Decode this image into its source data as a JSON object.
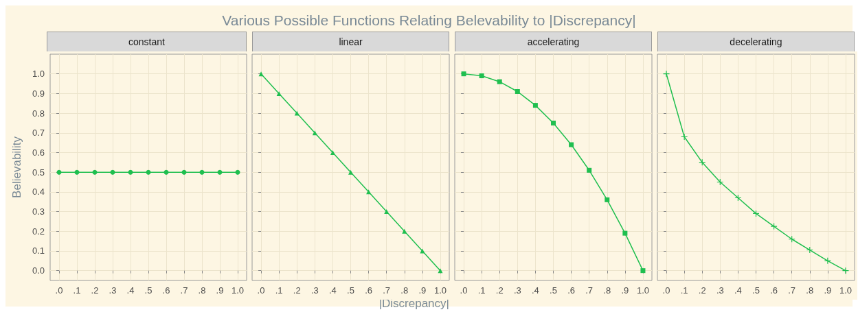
{
  "chart_data": [
    {
      "type": "line",
      "title": "constant",
      "annotations": [
        "Various Possible Functions Relating Belevability to |Discrepancy|"
      ],
      "ylabel": "Believability",
      "marker": "circle",
      "grid": true,
      "x": [
        0,
        0.1,
        0.2,
        0.3,
        0.4,
        0.5,
        0.6,
        0.7,
        0.8,
        0.9,
        1.0
      ],
      "series": [
        {
          "color": "#1fbf4f",
          "values": [
            0.5,
            0.5,
            0.5,
            0.5,
            0.5,
            0.5,
            0.5,
            0.5,
            0.5,
            0.5,
            0.5
          ]
        }
      ],
      "xlim": [
        -0.05,
        1.05
      ],
      "xticks": [
        {
          "value": 0,
          "label": ".0"
        },
        {
          "value": 0.1,
          "label": ".1"
        },
        {
          "value": 0.2,
          "label": ".2"
        },
        {
          "value": 0.3,
          "label": ".3"
        },
        {
          "value": 0.4,
          "label": ".4"
        },
        {
          "value": 0.5,
          "label": ".5"
        },
        {
          "value": 0.6,
          "label": ".6"
        },
        {
          "value": 0.7,
          "label": ".7"
        },
        {
          "value": 0.8,
          "label": ".8"
        },
        {
          "value": 0.9,
          "label": ".9"
        },
        {
          "value": 1,
          "label": "1.0"
        }
      ],
      "ylim": [
        -0.05,
        1.1
      ],
      "yticks": [
        {
          "value": 0,
          "label": "0.0"
        },
        {
          "value": 0.1,
          "label": "0.1"
        },
        {
          "value": 0.2,
          "label": "0.2"
        },
        {
          "value": 0.3,
          "label": "0.3"
        },
        {
          "value": 0.4,
          "label": "0.4"
        },
        {
          "value": 0.5,
          "label": "0.5"
        },
        {
          "value": 0.6,
          "label": "0.6"
        },
        {
          "value": 0.7,
          "label": "0.7"
        },
        {
          "value": 0.8,
          "label": "0.8"
        },
        {
          "value": 0.9,
          "label": "0.9"
        },
        {
          "value": 1,
          "label": "1.0"
        }
      ]
    },
    {
      "type": "line",
      "title": "linear",
      "xlabel": "|Discrepancy|",
      "marker": "triangle",
      "grid": true,
      "tick_labels": "x",
      "x": [
        0,
        0.1,
        0.2,
        0.3,
        0.4,
        0.5,
        0.6,
        0.7,
        0.8,
        0.9,
        1.0
      ],
      "series": [
        {
          "color": "#1fbf4f",
          "values": [
            1.0,
            0.9,
            0.8,
            0.7,
            0.6,
            0.5,
            0.4,
            0.3,
            0.2,
            0.1,
            0.0
          ]
        }
      ],
      "xlim": [
        -0.05,
        1.05
      ],
      "xticks": [
        {
          "value": 0,
          "label": ".0"
        },
        {
          "value": 0.1,
          "label": ".1"
        },
        {
          "value": 0.2,
          "label": ".2"
        },
        {
          "value": 0.3,
          "label": ".3"
        },
        {
          "value": 0.4,
          "label": ".4"
        },
        {
          "value": 0.5,
          "label": ".5"
        },
        {
          "value": 0.6,
          "label": ".6"
        },
        {
          "value": 0.7,
          "label": ".7"
        },
        {
          "value": 0.8,
          "label": ".8"
        },
        {
          "value": 0.9,
          "label": ".9"
        },
        {
          "value": 1,
          "label": "1.0"
        }
      ],
      "ylim": [
        -0.05,
        1.1
      ],
      "yticks": [
        {
          "value": 0,
          "label": null
        },
        {
          "value": 0.1,
          "label": null
        },
        {
          "value": 0.2,
          "label": null
        },
        {
          "value": 0.3,
          "label": null
        },
        {
          "value": 0.4,
          "label": null
        },
        {
          "value": 0.5,
          "label": null
        },
        {
          "value": 0.6,
          "label": null
        },
        {
          "value": 0.7,
          "label": null
        },
        {
          "value": 0.8,
          "label": null
        },
        {
          "value": 0.9,
          "label": null
        },
        {
          "value": 1,
          "label": null
        }
      ]
    },
    {
      "type": "line",
      "title": "accelerating",
      "marker": "square",
      "grid": true,
      "tick_labels": "x",
      "x": [
        0,
        0.1,
        0.2,
        0.3,
        0.4,
        0.5,
        0.6,
        0.7,
        0.8,
        0.9,
        1.0
      ],
      "series": [
        {
          "color": "#1fbf4f",
          "values": [
            1.0,
            0.99,
            0.96,
            0.91,
            0.84,
            0.75,
            0.64,
            0.51,
            0.36,
            0.19,
            0.0
          ]
        }
      ],
      "xlim": [
        -0.05,
        1.05
      ],
      "xticks": [
        {
          "value": 0,
          "label": ".0"
        },
        {
          "value": 0.1,
          "label": ".1"
        },
        {
          "value": 0.2,
          "label": ".2"
        },
        {
          "value": 0.3,
          "label": ".3"
        },
        {
          "value": 0.4,
          "label": ".4"
        },
        {
          "value": 0.5,
          "label": ".5"
        },
        {
          "value": 0.6,
          "label": ".6"
        },
        {
          "value": 0.7,
          "label": ".7"
        },
        {
          "value": 0.8,
          "label": ".8"
        },
        {
          "value": 0.9,
          "label": ".9"
        },
        {
          "value": 1,
          "label": "1.0"
        }
      ],
      "ylim": [
        -0.05,
        1.1
      ],
      "yticks": [
        {
          "value": 0,
          "label": null
        },
        {
          "value": 0.1,
          "label": null
        },
        {
          "value": 0.2,
          "label": null
        },
        {
          "value": 0.3,
          "label": null
        },
        {
          "value": 0.4,
          "label": null
        },
        {
          "value": 0.5,
          "label": null
        },
        {
          "value": 0.6,
          "label": null
        },
        {
          "value": 0.7,
          "label": null
        },
        {
          "value": 0.8,
          "label": null
        },
        {
          "value": 0.9,
          "label": null
        },
        {
          "value": 1,
          "label": null
        }
      ]
    },
    {
      "type": "line",
      "title": "decelerating",
      "marker": "cross",
      "grid": true,
      "tick_labels": "x",
      "x": [
        0,
        0.1,
        0.2,
        0.3,
        0.4,
        0.5,
        0.6,
        0.7,
        0.8,
        0.9,
        1.0
      ],
      "series": [
        {
          "color": "#1fbf4f",
          "values": [
            1.0,
            0.68,
            0.55,
            0.45,
            0.37,
            0.29,
            0.225,
            0.16,
            0.105,
            0.05,
            0.0
          ]
        }
      ],
      "xlim": [
        -0.05,
        1.05
      ],
      "xticks": [
        {
          "value": 0,
          "label": ".0"
        },
        {
          "value": 0.1,
          "label": ".1"
        },
        {
          "value": 0.2,
          "label": ".2"
        },
        {
          "value": 0.3,
          "label": ".3"
        },
        {
          "value": 0.4,
          "label": ".4"
        },
        {
          "value": 0.5,
          "label": ".5"
        },
        {
          "value": 0.6,
          "label": ".6"
        },
        {
          "value": 0.7,
          "label": ".7"
        },
        {
          "value": 0.8,
          "label": ".8"
        },
        {
          "value": 0.9,
          "label": ".9"
        },
        {
          "value": 1,
          "label": "1.0"
        }
      ],
      "ylim": [
        -0.05,
        1.1
      ],
      "yticks": [
        {
          "value": 0,
          "label": null
        },
        {
          "value": 0.1,
          "label": null
        },
        {
          "value": 0.2,
          "label": null
        },
        {
          "value": 0.3,
          "label": null
        },
        {
          "value": 0.4,
          "label": null
        },
        {
          "value": 0.5,
          "label": null
        },
        {
          "value": 0.6,
          "label": null
        },
        {
          "value": 0.7,
          "label": null
        },
        {
          "value": 0.8,
          "label": null
        },
        {
          "value": 0.9,
          "label": null
        },
        {
          "value": 1,
          "label": null
        }
      ]
    }
  ]
}
